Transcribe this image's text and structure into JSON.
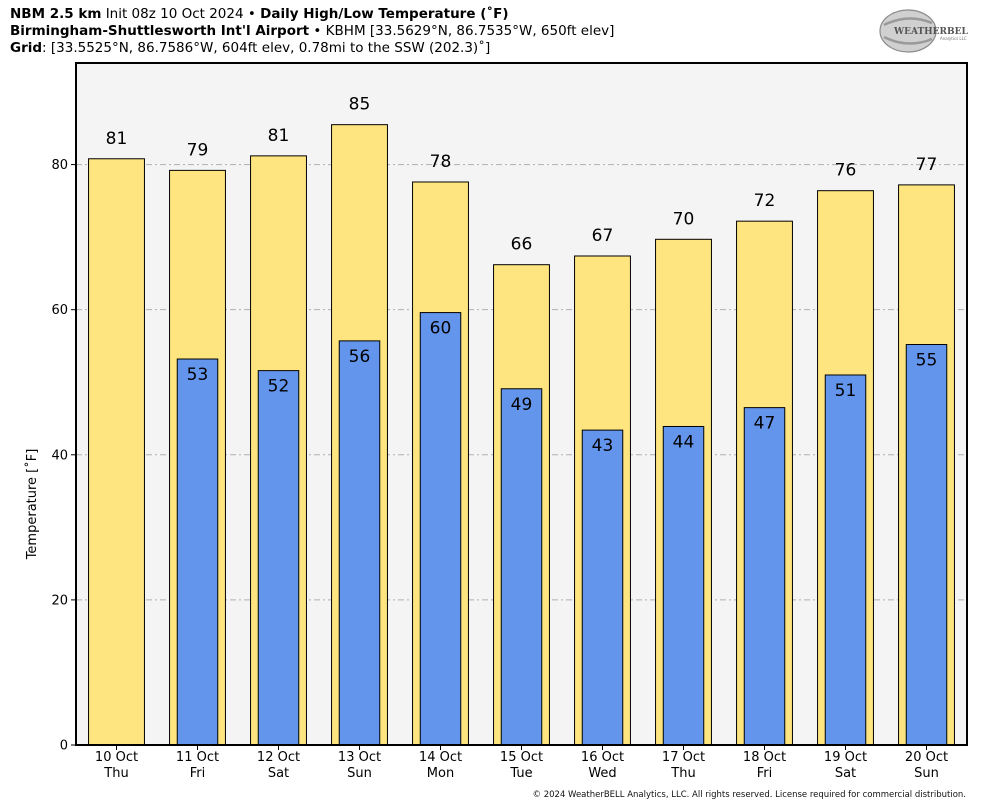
{
  "header": {
    "model": "NBM 2.5 km",
    "init": "Init 08z 10 Oct 2024",
    "bullet": "•",
    "product": "Daily High/Low Temperature (˚F)",
    "station_name": "Birmingham-Shuttlesworth Int'l Airport",
    "station_info": "KBHM [33.5629°N, 86.7535°W, 650ft elev]",
    "grid_label": "Grid",
    "grid_info": ": [33.5525°N, 86.7586°W, 604ft elev, 0.78mi to the SSW (202.3)˚]"
  },
  "logo": {
    "text_main": "WEATHERBELL",
    "text_sub": "Analytics LLC"
  },
  "footer": "© 2024 WeatherBELL Analytics, LLC. All rights reserved. License required for commercial distribution.",
  "chart_data": {
    "type": "bar",
    "ylabel": "Temperature [˚F]",
    "ylim": [
      0,
      94
    ],
    "yticks": [
      0,
      20,
      40,
      60,
      80
    ],
    "grid": "horizontal dashed",
    "categories": [
      [
        "10 Oct",
        "Thu"
      ],
      [
        "11 Oct",
        "Fri"
      ],
      [
        "12 Oct",
        "Sat"
      ],
      [
        "13 Oct",
        "Sun"
      ],
      [
        "14 Oct",
        "Mon"
      ],
      [
        "15 Oct",
        "Tue"
      ],
      [
        "16 Oct",
        "Wed"
      ],
      [
        "17 Oct",
        "Thu"
      ],
      [
        "18 Oct",
        "Fri"
      ],
      [
        "19 Oct",
        "Sat"
      ],
      [
        "20 Oct",
        "Sun"
      ]
    ],
    "series": [
      {
        "key": "high",
        "color": "#FFE57F",
        "values": [
          80.8,
          79.2,
          81.2,
          85.5,
          77.6,
          66.2,
          67.4,
          69.7,
          72.2,
          76.4,
          77.2
        ],
        "labels": [
          "81",
          "79",
          "81",
          "85",
          "78",
          "66",
          "67",
          "70",
          "72",
          "76",
          "77"
        ]
      },
      {
        "key": "low",
        "color": "#6495ED",
        "values": [
          null,
          53.2,
          51.6,
          55.7,
          59.6,
          49.1,
          43.4,
          43.9,
          46.5,
          51.0,
          55.2
        ],
        "labels": [
          "",
          "53",
          "52",
          "56",
          "60",
          "49",
          "43",
          "44",
          "47",
          "51",
          "55"
        ]
      }
    ],
    "colors": {
      "plot_bg": "#F4F4F4",
      "grid": "#B0B0B0"
    }
  }
}
